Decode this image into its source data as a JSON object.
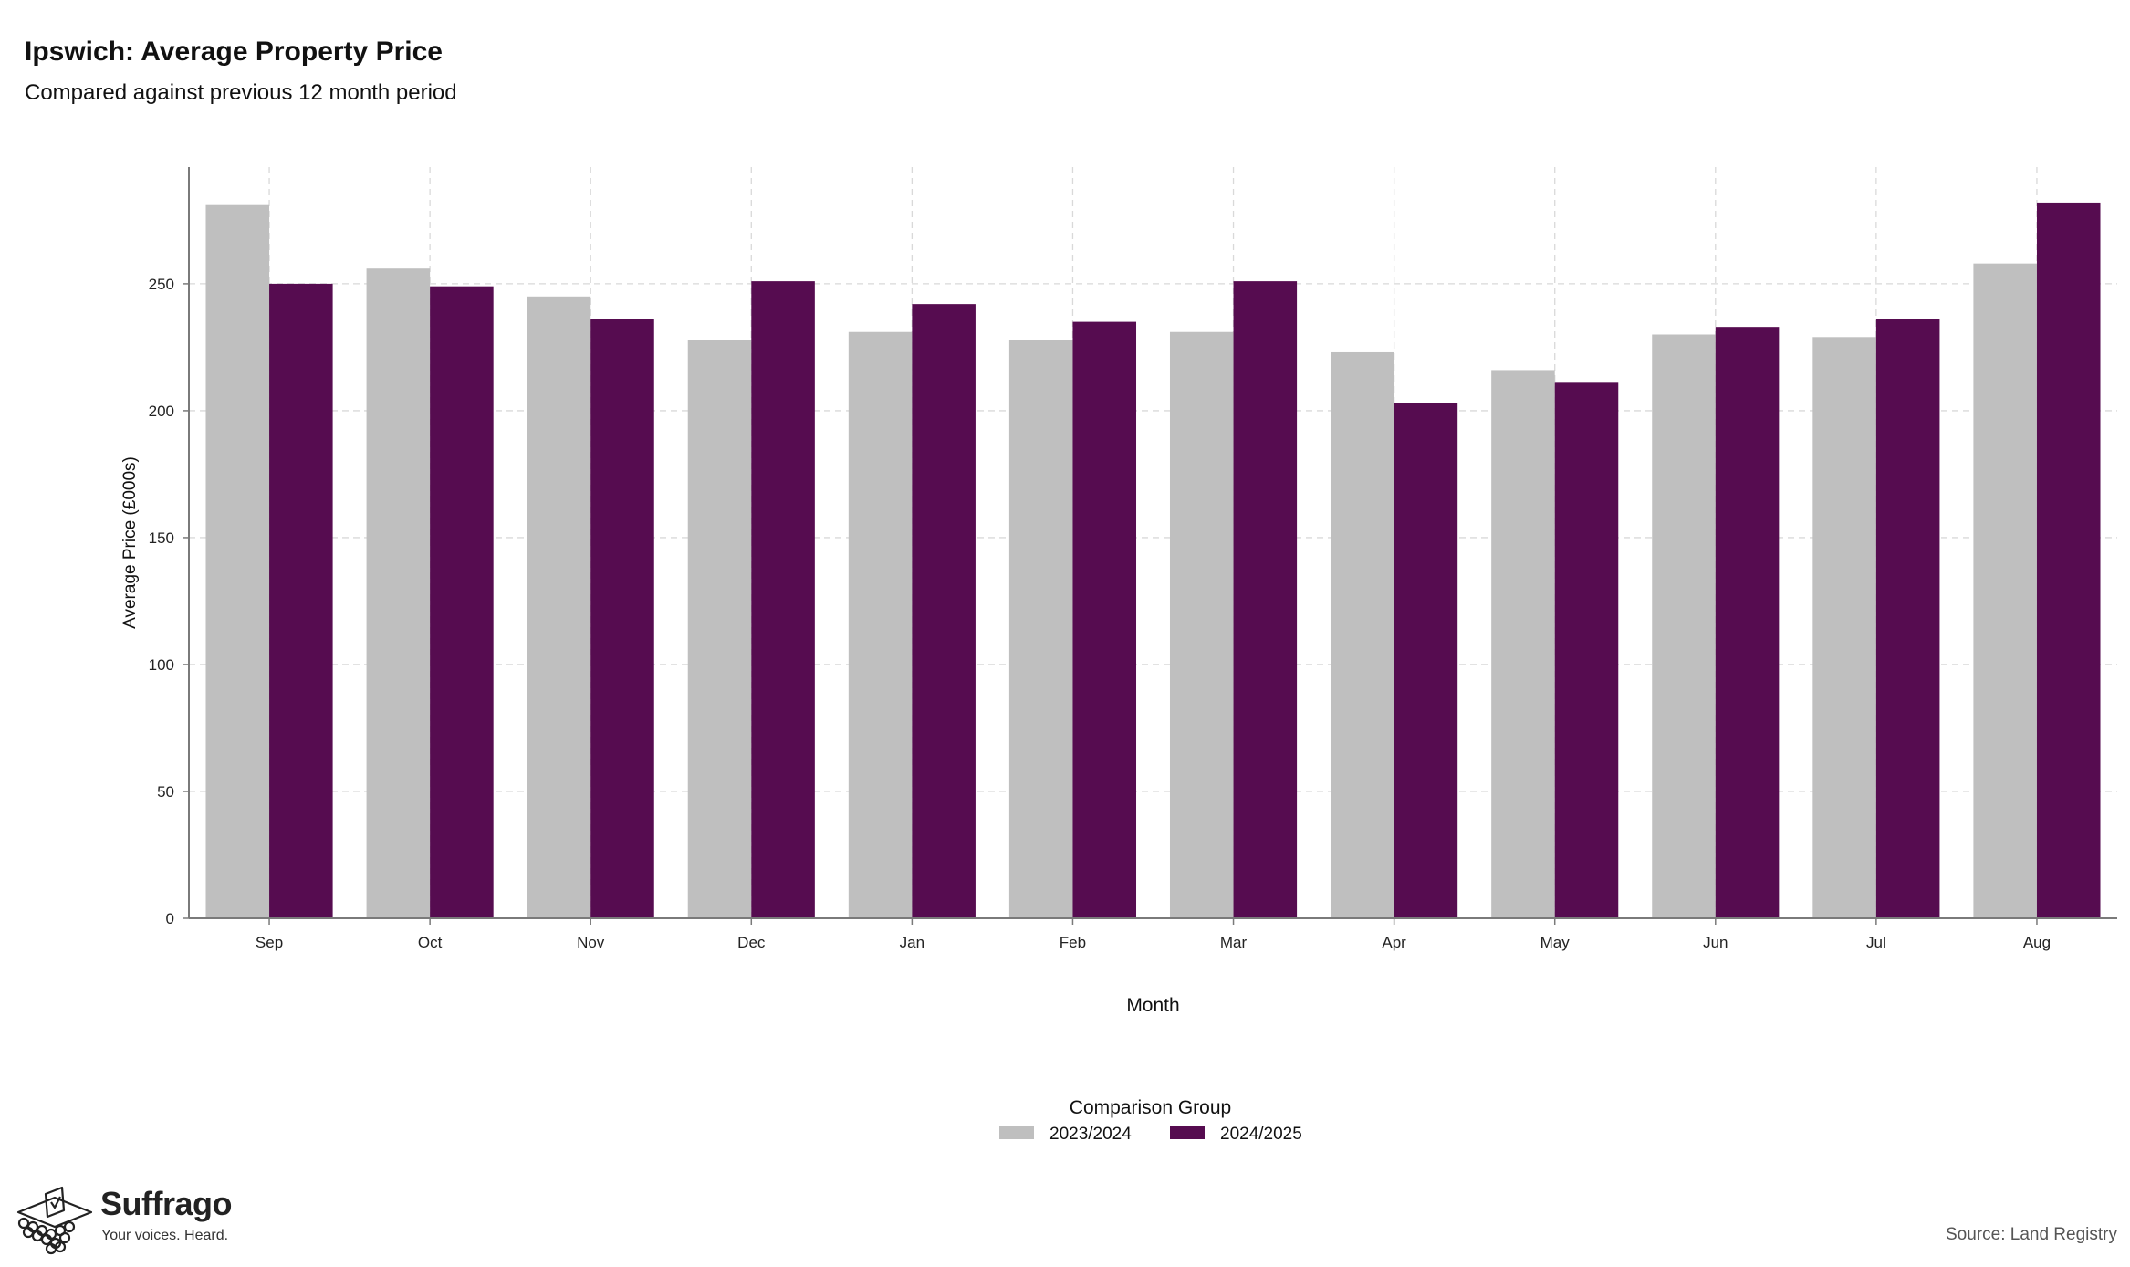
{
  "header": {
    "title": "Ipswich: Average Property Price",
    "subtitle": "Compared against previous 12 month period"
  },
  "footer": {
    "source": "Source: Land Registry",
    "brand_name": "Suffrago",
    "brand_tagline": "Your voices. Heard."
  },
  "icons": {
    "logo": "ballot-box-icon"
  },
  "chart_data": {
    "type": "bar",
    "title": "Ipswich: Average Property Price",
    "subtitle": "Compared against previous 12 month period",
    "xlabel": "Month",
    "ylabel": "Average Price (£000s)",
    "categories": [
      "Sep",
      "Oct",
      "Nov",
      "Dec",
      "Jan",
      "Feb",
      "Mar",
      "Apr",
      "May",
      "Jun",
      "Jul",
      "Aug"
    ],
    "series": [
      {
        "name": "2023/2024",
        "color": "#bfbfbf",
        "values": [
          281,
          256,
          245,
          228,
          231,
          228,
          231,
          223,
          216,
          230,
          229,
          258
        ]
      },
      {
        "name": "2024/2025",
        "color": "#560c50",
        "values": [
          250,
          249,
          236,
          251,
          242,
          235,
          251,
          203,
          211,
          233,
          236,
          282
        ]
      }
    ],
    "ylim": [
      0,
      296
    ],
    "yticks": [
      0,
      50,
      100,
      150,
      200,
      250
    ],
    "grid": true,
    "legend": {
      "title": "Comparison Group",
      "placement": "bottom"
    }
  }
}
